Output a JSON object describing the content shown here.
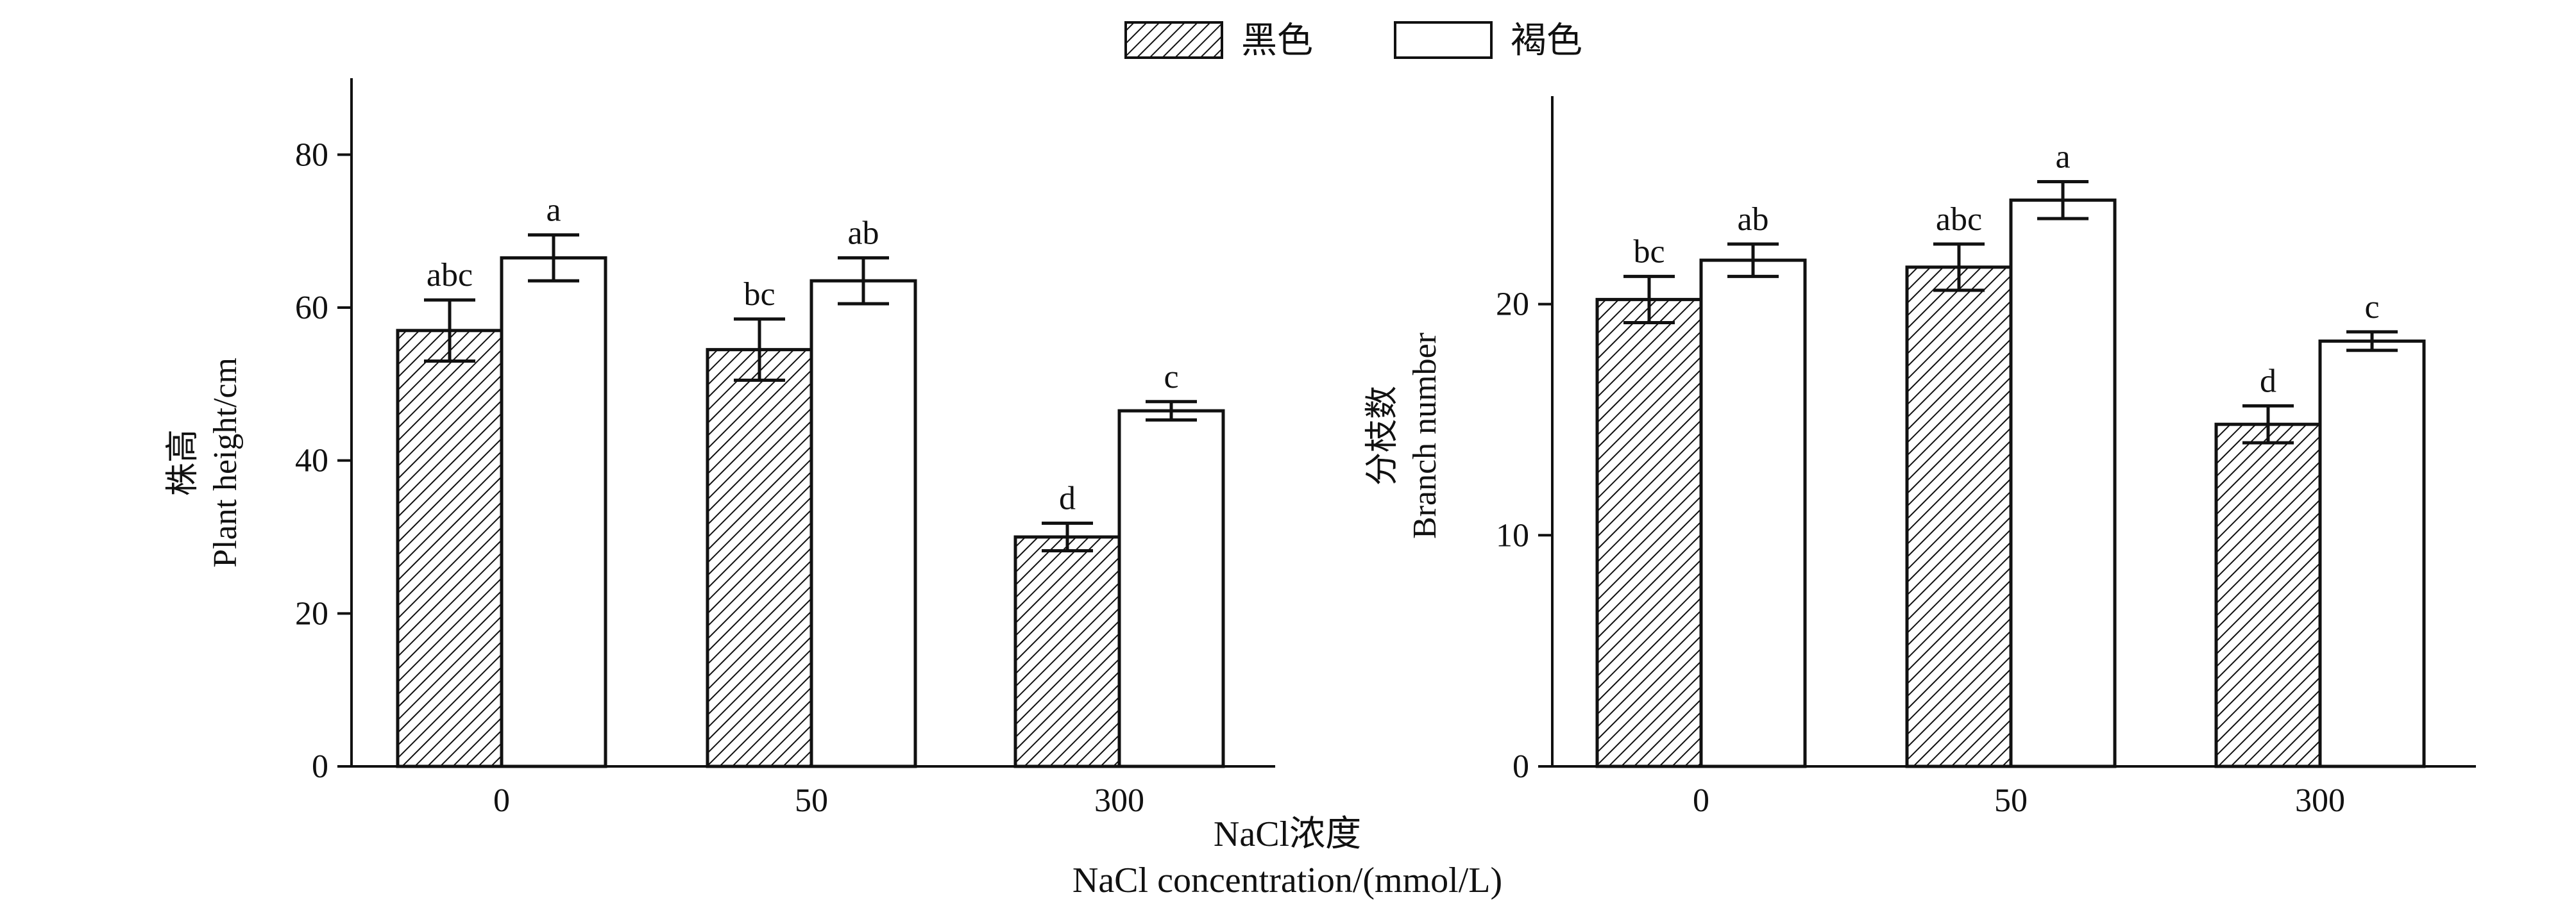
{
  "legend": {
    "items": [
      {
        "label": "黑色",
        "pattern": "hatch"
      },
      {
        "label": "褐色",
        "pattern": "open"
      }
    ]
  },
  "x_axis": {
    "title_cn": "NaCl浓度",
    "title_en": "NaCl concentration/(mmol/L)"
  },
  "colors": {
    "stroke": "#111111",
    "hatch": "#111111",
    "open_fill": "#ffffff"
  },
  "chart_data": [
    {
      "type": "bar",
      "ylabel_cn": "株高",
      "ylabel_en": "Plant height/cm",
      "ylim": [
        0,
        90
      ],
      "yticks": [
        0,
        20,
        40,
        60,
        80
      ],
      "categories": [
        "0",
        "50",
        "300"
      ],
      "series": [
        {
          "name": "黑色",
          "values": [
            57,
            54.5,
            30
          ],
          "errors": [
            4,
            4,
            1.8
          ],
          "letters": [
            "abc",
            "bc",
            "d"
          ]
        },
        {
          "name": "褐色",
          "values": [
            66.5,
            63.5,
            46.5
          ],
          "errors": [
            3,
            3,
            1.2
          ],
          "letters": [
            "a",
            "ab",
            "c"
          ]
        }
      ]
    },
    {
      "type": "bar",
      "ylabel_cn": "分枝数",
      "ylabel_en": "Branch number",
      "ylim": [
        0,
        29
      ],
      "yticks": [
        0,
        10,
        20
      ],
      "categories": [
        "0",
        "50",
        "300"
      ],
      "series": [
        {
          "name": "黑色",
          "values": [
            20.2,
            21.6,
            14.8
          ],
          "errors": [
            1,
            1,
            0.8
          ],
          "letters": [
            "bc",
            "abc",
            "d"
          ]
        },
        {
          "name": "褐色",
          "values": [
            21.9,
            24.5,
            18.4
          ],
          "errors": [
            0.7,
            0.8,
            0.4
          ],
          "letters": [
            "ab",
            "a",
            "c"
          ]
        }
      ]
    }
  ]
}
